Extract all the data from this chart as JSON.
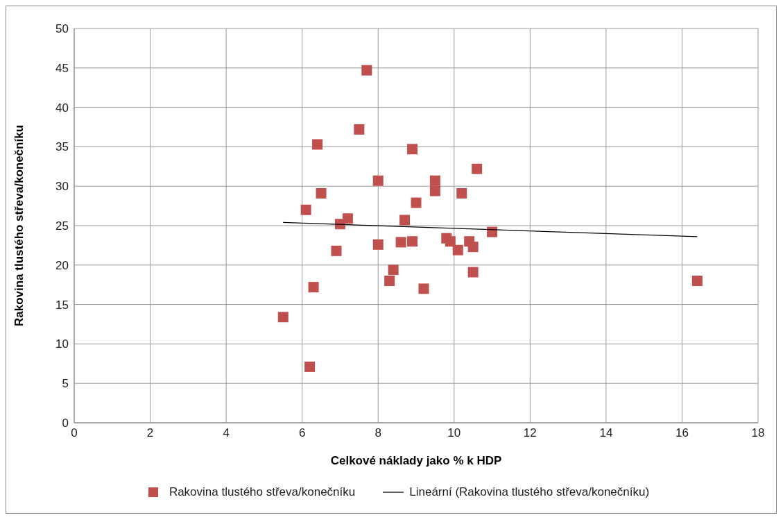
{
  "chart_data": {
    "type": "scatter",
    "xlabel": "Celkové náklady jako % k HDP",
    "ylabel": "Rakovina tlustého střeva/konečníku",
    "xlim": [
      0,
      18
    ],
    "xticks": [
      0,
      2,
      4,
      6,
      8,
      10,
      12,
      14,
      16,
      18
    ],
    "ylim": [
      0,
      50
    ],
    "yticks": [
      0,
      5,
      10,
      15,
      20,
      25,
      30,
      35,
      40,
      45,
      50
    ],
    "grid": true,
    "legend": "bottom",
    "series": [
      {
        "name": "Rakovina tlustého střeva/konečníku",
        "color": "#c0504d",
        "marker": "square",
        "x": [
          7.7,
          7.5,
          6.4,
          8.9,
          10.6,
          8.0,
          9.5,
          9.5,
          6.5,
          10.2,
          6.1,
          9.0,
          8.7,
          7.2,
          7.0,
          11.0,
          9.8,
          9.9,
          10.4,
          10.5,
          10.1,
          8.0,
          8.6,
          8.9,
          6.9,
          8.4,
          8.3,
          10.5,
          9.2,
          6.3,
          5.5,
          6.2,
          16.4
        ],
        "values": [
          44.7,
          37.2,
          35.3,
          34.7,
          32.2,
          30.7,
          30.7,
          29.4,
          29.1,
          29.1,
          27.0,
          27.9,
          25.7,
          25.9,
          25.2,
          24.2,
          23.4,
          23.0,
          23.0,
          22.3,
          21.9,
          22.6,
          22.9,
          23.0,
          21.8,
          19.4,
          18.0,
          19.1,
          17.0,
          17.2,
          13.4,
          7.1,
          18.0
        ]
      },
      {
        "name": "Lineární (Rakovina tlustého střeva/konečníku)",
        "type": "line",
        "marker": "none",
        "color": "#000000",
        "x": [
          5.5,
          16.4
        ],
        "values": [
          25.4,
          23.6
        ]
      }
    ]
  }
}
